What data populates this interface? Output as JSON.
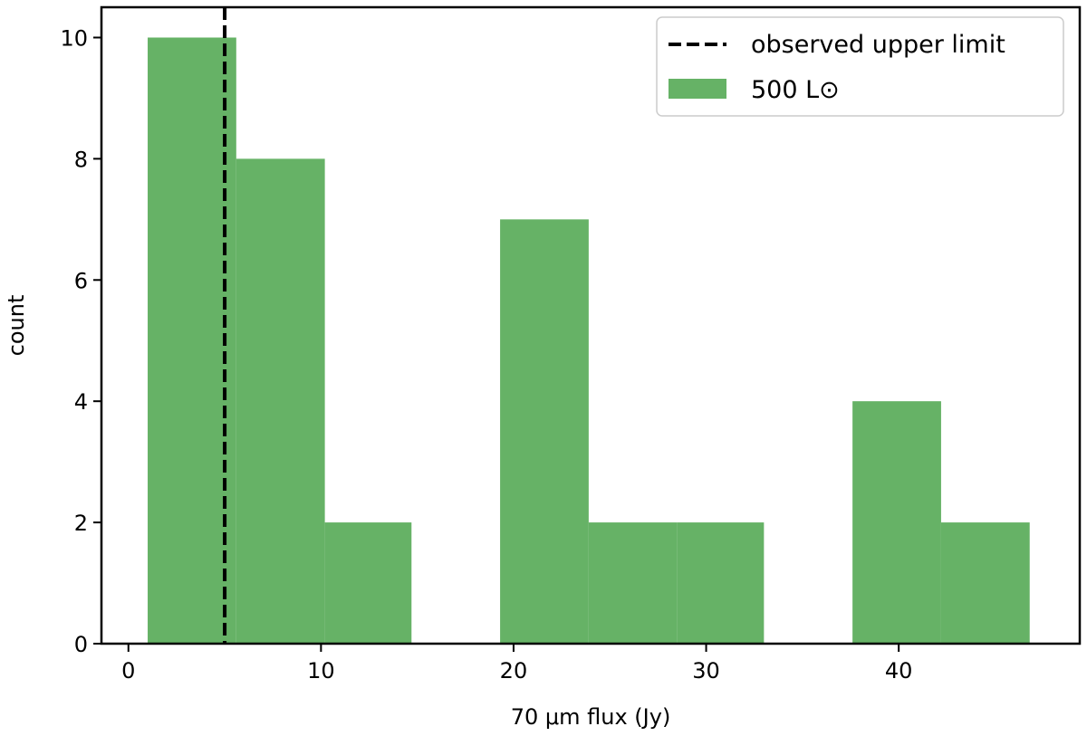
{
  "chart_data": {
    "type": "bar",
    "xlabel": "70 μm flux (Jy)",
    "ylabel": "count",
    "xlim": [
      -1.4,
      49.4
    ],
    "ylim": [
      0,
      10.5
    ],
    "x_ticks": [
      0,
      10,
      20,
      30,
      40
    ],
    "y_ticks": [
      0,
      2,
      4,
      6,
      8,
      10
    ],
    "grid": false,
    "legend_position": "top-right",
    "series": [
      {
        "name": "500 L⊙",
        "kind": "histogram",
        "color": "#66b266",
        "bins": [
          {
            "x0": 1.0,
            "x1": 5.6,
            "count": 10
          },
          {
            "x0": 5.6,
            "x1": 10.2,
            "count": 8
          },
          {
            "x0": 10.2,
            "x1": 14.7,
            "count": 2
          },
          {
            "x0": 14.7,
            "x1": 19.3,
            "count": 0
          },
          {
            "x0": 19.3,
            "x1": 23.9,
            "count": 7
          },
          {
            "x0": 23.9,
            "x1": 28.5,
            "count": 2
          },
          {
            "x0": 28.5,
            "x1": 33.0,
            "count": 2
          },
          {
            "x0": 33.0,
            "x1": 37.6,
            "count": 0
          },
          {
            "x0": 37.6,
            "x1": 42.2,
            "count": 4
          },
          {
            "x0": 42.2,
            "x1": 46.8,
            "count": 2
          }
        ]
      },
      {
        "name": "observed upper limit",
        "kind": "vline",
        "x": 5.0,
        "color": "#000000",
        "style": "dashed"
      }
    ]
  }
}
